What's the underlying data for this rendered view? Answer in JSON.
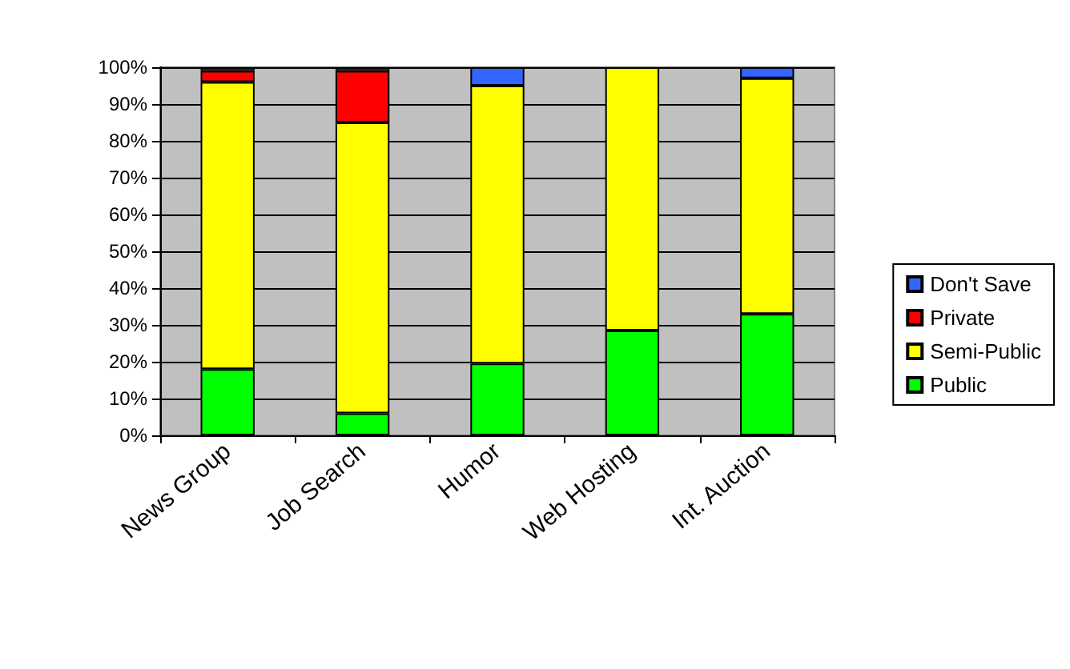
{
  "chart_data": {
    "type": "bar",
    "stacked": true,
    "categories": [
      "News Group",
      "Job Search",
      "Humor",
      "Web Hosting",
      "Int. Auction"
    ],
    "series": [
      {
        "name": "Public",
        "color": "#00ff00",
        "values": [
          18,
          6,
          19.5,
          28.5,
          33
        ]
      },
      {
        "name": "Semi-Public",
        "color": "#ffff00",
        "values": [
          78,
          79,
          75.5,
          71.5,
          64
        ]
      },
      {
        "name": "Private",
        "color": "#ff0000",
        "values": [
          3,
          14,
          0,
          0,
          0
        ]
      },
      {
        "name": "Don't Save",
        "color": "#3366ff",
        "values": [
          1,
          1,
          5,
          0,
          3
        ]
      }
    ],
    "ylim": [
      0,
      100
    ],
    "yticks": [
      {
        "value": 0,
        "label": "0%"
      },
      {
        "value": 10,
        "label": "10%"
      },
      {
        "value": 20,
        "label": "20%"
      },
      {
        "value": 30,
        "label": "30%"
      },
      {
        "value": 40,
        "label": "40%"
      },
      {
        "value": 50,
        "label": "50%"
      },
      {
        "value": 60,
        "label": "60%"
      },
      {
        "value": 70,
        "label": "70%"
      },
      {
        "value": 80,
        "label": "80%"
      },
      {
        "value": 90,
        "label": "90%"
      },
      {
        "value": 100,
        "label": "100%"
      }
    ],
    "grid": "y",
    "legend": "right"
  }
}
